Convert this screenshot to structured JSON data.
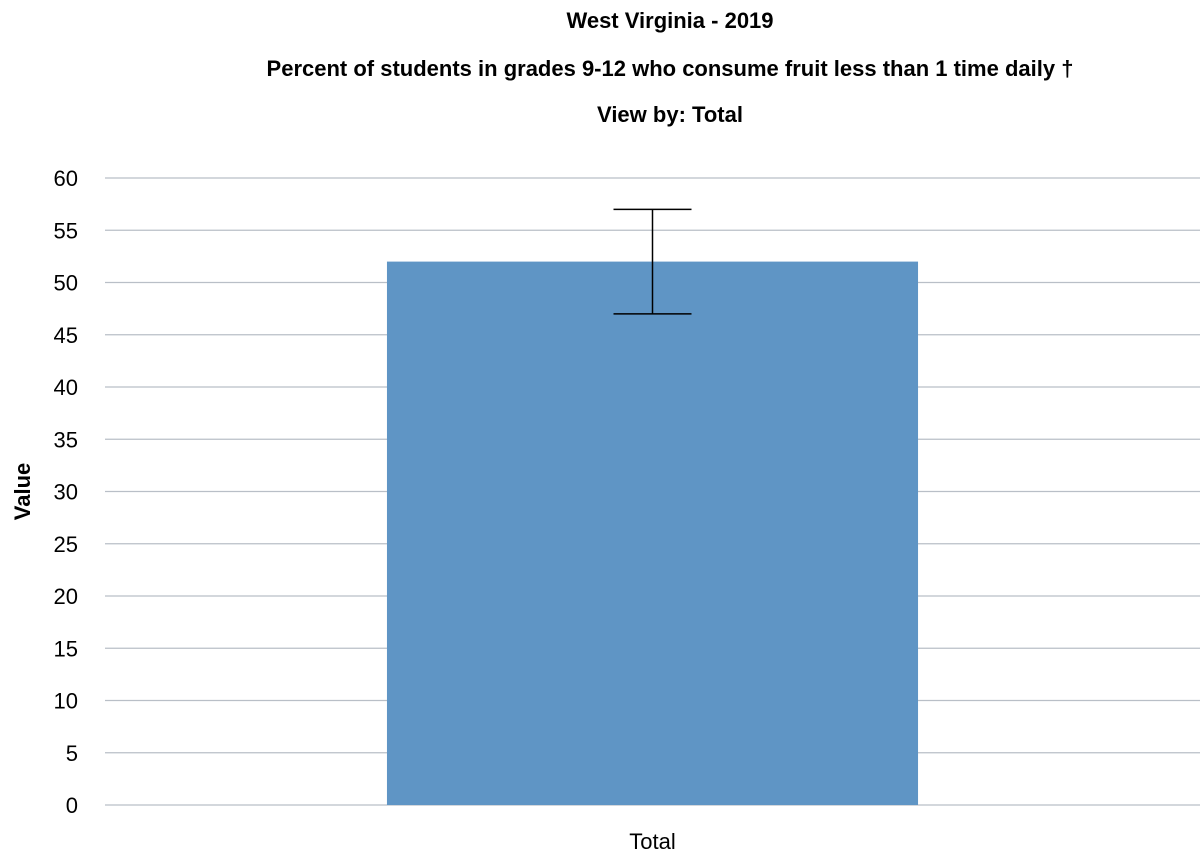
{
  "chart_data": {
    "type": "bar",
    "title": "West Virginia - 2019",
    "subtitle": "Percent of students in grades 9-12 who consume fruit less than 1 time daily †",
    "view_by": "View by: Total",
    "xlabel": "",
    "ylabel": "Value",
    "categories": [
      "Total"
    ],
    "values": [
      52.0
    ],
    "error_low": [
      47.0
    ],
    "error_high": [
      57.0
    ],
    "ylim": [
      0,
      60
    ],
    "yticks": [
      0,
      5,
      10,
      15,
      20,
      25,
      30,
      35,
      40,
      45,
      50,
      55,
      60
    ],
    "grid": true,
    "bar_color": "#5f95c5",
    "grid_color": "#b9bfc7",
    "error_bar_color": "#000000"
  }
}
